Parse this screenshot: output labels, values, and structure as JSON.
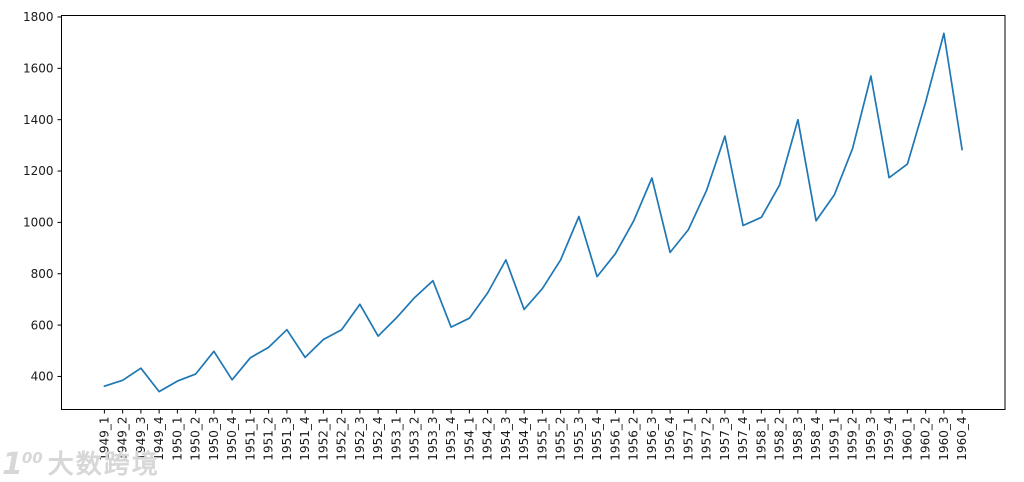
{
  "watermark": {
    "logo_1": "1",
    "logo_00": "00",
    "brand_text": "大数跨境",
    "color": "#d7d7d7"
  },
  "chart_data": {
    "type": "line",
    "title": "",
    "xlabel": "",
    "ylabel": "",
    "legend": null,
    "grid": false,
    "background": "#ffffff",
    "line_color": "#1f77b4",
    "axis_color": "#000000",
    "x_tick_rotation": 90,
    "categories": [
      "1949_1",
      "1949_2",
      "1949_3",
      "1949_4",
      "1950_1",
      "1950_2",
      "1950_3",
      "1950_4",
      "1951_1",
      "1951_2",
      "1951_3",
      "1951_4",
      "1952_1",
      "1952_2",
      "1952_3",
      "1952_4",
      "1953_1",
      "1953_2",
      "1953_3",
      "1953_4",
      "1954_1",
      "1954_2",
      "1954_3",
      "1954_4",
      "1955_1",
      "1955_2",
      "1955_3",
      "1955_4",
      "1956_1",
      "1956_2",
      "1956_3",
      "1956_4",
      "1957_1",
      "1957_2",
      "1957_3",
      "1957_4",
      "1958_1",
      "1958_2",
      "1958_3",
      "1958_4",
      "1959_1",
      "1959_2",
      "1959_3",
      "1959_4",
      "1960_1",
      "1960_2",
      "1960_3",
      "1960_4"
    ],
    "values": [
      362,
      385,
      432,
      341,
      382,
      409,
      498,
      387,
      473,
      513,
      582,
      474,
      544,
      582,
      681,
      557,
      628,
      707,
      773,
      592,
      627,
      725,
      854,
      661,
      742,
      854,
      1023,
      789,
      878,
      1005,
      1173,
      883,
      972,
      1125,
      1336,
      988,
      1020,
      1146,
      1400,
      1006,
      1108,
      1288,
      1570,
      1174,
      1227,
      1468,
      1736,
      1283
    ],
    "yticks": [
      400,
      600,
      800,
      1000,
      1200,
      1400,
      1600,
      1800
    ],
    "ylim": [
      271.25,
      1805.75
    ],
    "xlim": [
      -2.35,
      49.35
    ]
  }
}
